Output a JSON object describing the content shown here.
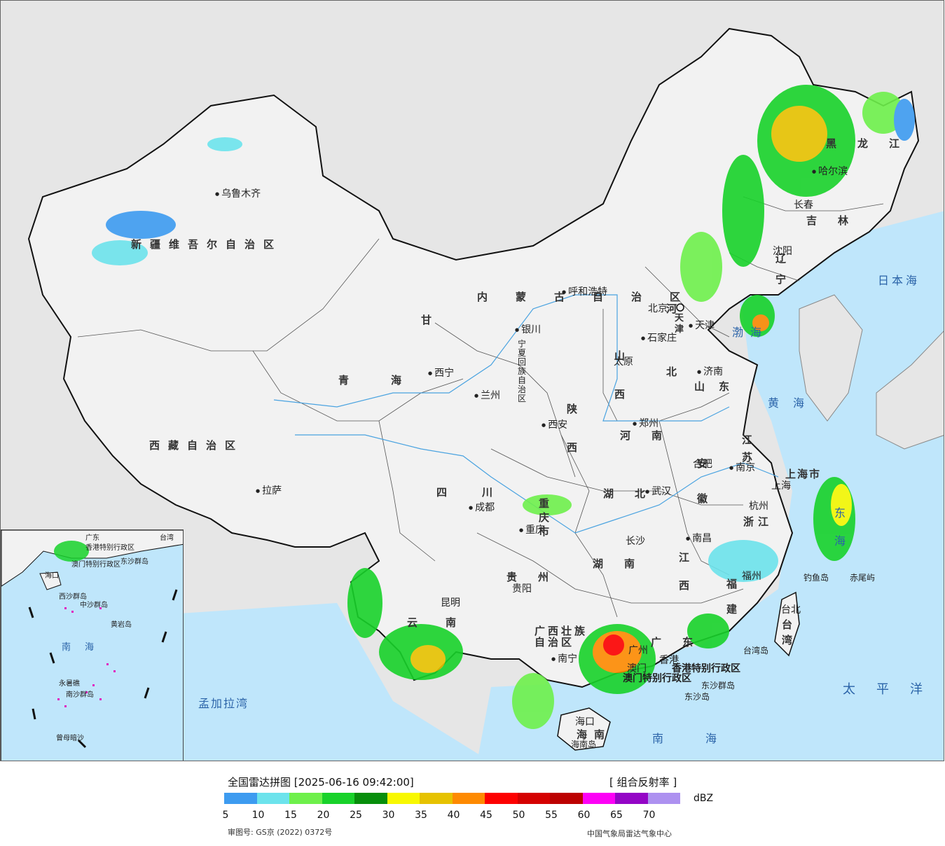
{
  "map": {
    "colors": {
      "ocean": "#bfe6fb",
      "land_outside": "#e6e6e6",
      "china": "#f2f2f2",
      "border": "#111111",
      "river": "#4aa3e0"
    },
    "region_labels": [
      {
        "id": "xinjiang",
        "text": "新疆维吾尔自治区"
      },
      {
        "id": "xizang",
        "text": "西藏自治区"
      },
      {
        "id": "qinghai",
        "text": "青海"
      },
      {
        "id": "gansu",
        "text": "甘"
      },
      {
        "id": "sichuan",
        "text": "四川"
      },
      {
        "id": "yunnan",
        "text": "云南"
      },
      {
        "id": "guizhou",
        "text": "贵州"
      },
      {
        "id": "guangxi",
        "text": "广西壮族自治区"
      },
      {
        "id": "guangdong",
        "text": "广东"
      },
      {
        "id": "hunan",
        "text": "湖南"
      },
      {
        "id": "hubei",
        "text": "湖北"
      },
      {
        "id": "henan",
        "text": "河南"
      },
      {
        "id": "shaanxi",
        "text": "陕西"
      },
      {
        "id": "shanxi",
        "text": "山西"
      },
      {
        "id": "hebei",
        "text": "河北"
      },
      {
        "id": "shandong",
        "text": "山东"
      },
      {
        "id": "jiangsu",
        "text": "江苏"
      },
      {
        "id": "anhui",
        "text": "安徽"
      },
      {
        "id": "zhejiang",
        "text": "浙江"
      },
      {
        "id": "jiangxi",
        "text": "江西"
      },
      {
        "id": "fujian",
        "text": "福建"
      },
      {
        "id": "taiwan",
        "text": "台湾"
      },
      {
        "id": "hainan",
        "text": "海南"
      },
      {
        "id": "chongqing",
        "text": "重庆市"
      },
      {
        "id": "shanghai",
        "text": "上海市"
      },
      {
        "id": "liaoning",
        "text": "辽宁"
      },
      {
        "id": "jilin",
        "text": "吉林"
      },
      {
        "id": "heilongjiang",
        "text": "黑龙江"
      },
      {
        "id": "neimenggu",
        "text": "内蒙古自治区"
      },
      {
        "id": "ningxia",
        "text": "宁夏回族自治区"
      },
      {
        "id": "tianjin",
        "text": "天津"
      },
      {
        "id": "hongkong",
        "text": "香港特别行政区"
      },
      {
        "id": "macao",
        "text": "澳门特别行政区"
      }
    ],
    "cities": [
      {
        "id": "urumqi",
        "text": "乌鲁木齐"
      },
      {
        "id": "lhasa",
        "text": "拉萨"
      },
      {
        "id": "xining",
        "text": "西宁"
      },
      {
        "id": "lanzhou",
        "text": "兰州"
      },
      {
        "id": "yinchuan",
        "text": "银川"
      },
      {
        "id": "huhehaote",
        "text": "呼和浩特"
      },
      {
        "id": "beijing",
        "text": "北京"
      },
      {
        "id": "tianjin_c",
        "text": "天津"
      },
      {
        "id": "shijiazhuang",
        "text": "石家庄"
      },
      {
        "id": "taiyuan",
        "text": "太原"
      },
      {
        "id": "jinan",
        "text": "济南"
      },
      {
        "id": "zhengzhou",
        "text": "郑州"
      },
      {
        "id": "xian",
        "text": "西安"
      },
      {
        "id": "chengdu",
        "text": "成都"
      },
      {
        "id": "chongqing_c",
        "text": "重庆"
      },
      {
        "id": "wuhan",
        "text": "武汉"
      },
      {
        "id": "hefei",
        "text": "合肥"
      },
      {
        "id": "nanjing",
        "text": "南京"
      },
      {
        "id": "shanghai_c",
        "text": "上海"
      },
      {
        "id": "hangzhou",
        "text": "杭州"
      },
      {
        "id": "nanchang",
        "text": "南昌"
      },
      {
        "id": "changsha",
        "text": "长沙"
      },
      {
        "id": "fuzhou",
        "text": "福州"
      },
      {
        "id": "taibei",
        "text": "台北"
      },
      {
        "id": "guiyang",
        "text": "贵阳"
      },
      {
        "id": "kunming",
        "text": "昆明"
      },
      {
        "id": "nanning",
        "text": "南宁"
      },
      {
        "id": "guangzhou",
        "text": "广州"
      },
      {
        "id": "xianggang",
        "text": "香港"
      },
      {
        "id": "aomen",
        "text": "澳门"
      },
      {
        "id": "haikou",
        "text": "海口"
      },
      {
        "id": "shenyang",
        "text": "沈阳"
      },
      {
        "id": "changchun",
        "text": "长春"
      },
      {
        "id": "haerbin",
        "text": "哈尔滨"
      }
    ],
    "seas": [
      {
        "id": "japan_sea",
        "text": "日本海"
      },
      {
        "id": "yellow_sea",
        "text": "黄海"
      },
      {
        "id": "bohai",
        "text": "渤海"
      },
      {
        "id": "east_sea",
        "text": "东海"
      },
      {
        "id": "pacific",
        "text": "太平洋"
      },
      {
        "id": "south_sea",
        "text": "南海"
      },
      {
        "id": "bengal",
        "text": "孟加拉湾"
      }
    ],
    "islands": [
      {
        "id": "diaoyu",
        "text": "钓鱼岛"
      },
      {
        "id": "chiwei",
        "text": "赤尾屿"
      },
      {
        "id": "dongsha_qd",
        "text": "东沙群岛"
      },
      {
        "id": "dongsha_d",
        "text": "东沙岛"
      },
      {
        "id": "hainan_d",
        "text": "海南岛"
      },
      {
        "id": "taiwan_d",
        "text": "台湾岛"
      }
    ],
    "inset_labels": [
      {
        "id": "i_nanhai",
        "text": "南海"
      },
      {
        "id": "i_xisha",
        "text": "西沙群岛"
      },
      {
        "id": "i_zhongsha",
        "text": "中沙群岛"
      },
      {
        "id": "i_huangyan",
        "text": "黄岩岛"
      },
      {
        "id": "i_nansha",
        "text": "南沙群岛"
      },
      {
        "id": "i_yongshu",
        "text": "永暑礁"
      },
      {
        "id": "i_zengmu",
        "text": "曾母暗沙"
      },
      {
        "id": "i_haikou",
        "text": "海口"
      },
      {
        "id": "i_dongsha",
        "text": "东沙群岛"
      },
      {
        "id": "i_guangdong",
        "text": "广东"
      },
      {
        "id": "i_taiwan",
        "text": "台湾"
      },
      {
        "id": "i_macao",
        "text": "澳门特别行政区"
      },
      {
        "id": "i_hk",
        "text": "香港特别行政区"
      }
    ]
  },
  "legend": {
    "title": "全国雷达拼图 [2025-06-16 09:42:00]",
    "product": "[ 组合反射率 ]",
    "unit": "dBZ",
    "ticks": [
      "5",
      "10",
      "15",
      "20",
      "25",
      "30",
      "35",
      "40",
      "45",
      "50",
      "55",
      "60",
      "65",
      "70"
    ],
    "colors": [
      "#3d9bf0",
      "#6ce3ec",
      "#6ef04b",
      "#18d22a",
      "#078e0b",
      "#f8f800",
      "#e6c200",
      "#fe8a01",
      "#fd0000",
      "#d50000",
      "#bc0000",
      "#fd00f6",
      "#9405c6",
      "#ad91f0"
    ],
    "approval": "审图号: GS京 (2022) 0372号",
    "credit": "中国气象局雷达气象中心"
  }
}
